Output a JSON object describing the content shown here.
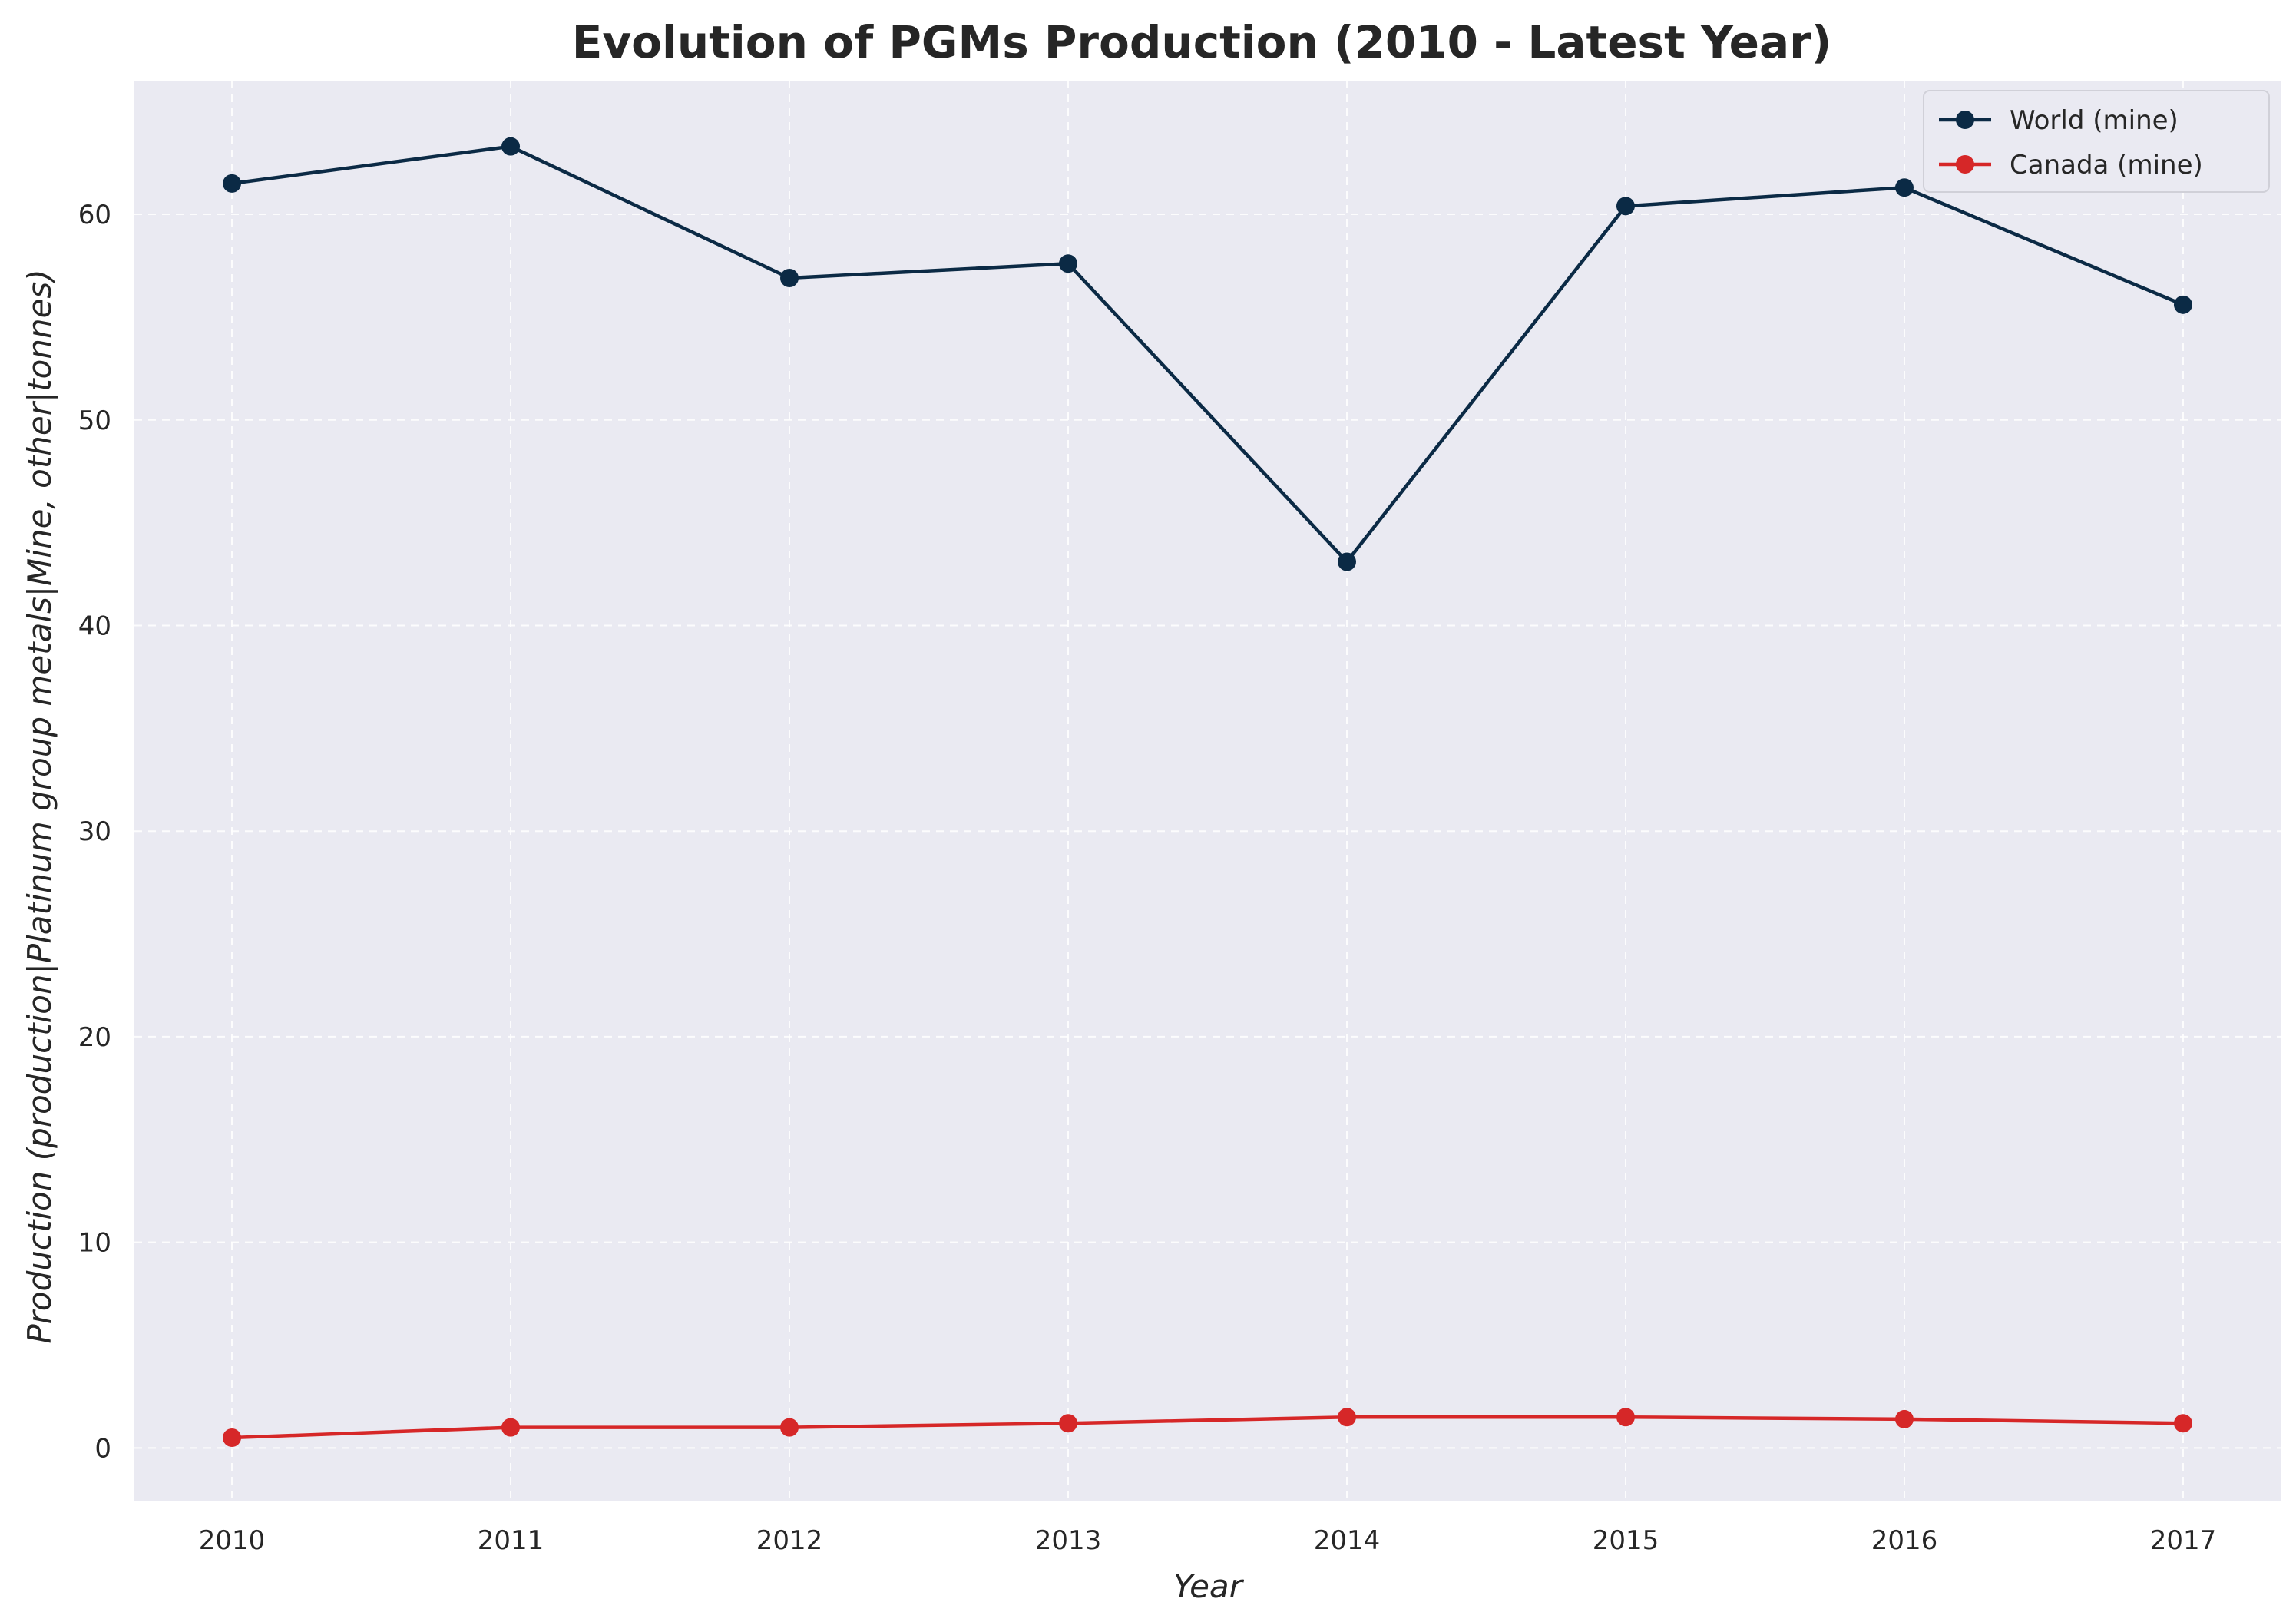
{
  "chart_data": {
    "type": "line",
    "title": "Evolution of PGMs Production (2010 - Latest Year)",
    "xlabel": "Year",
    "ylabel": "Production (production|Platinum group metals|Mine, other|tonnes)",
    "x": [
      2010,
      2011,
      2012,
      2013,
      2014,
      2015,
      2016,
      2017
    ],
    "xlim": [
      2009.65,
      2017.35
    ],
    "ylim": [
      -2.6,
      66.5
    ],
    "yticks": [
      0,
      10,
      20,
      30,
      40,
      50,
      60
    ],
    "grid": true,
    "legend_position": "top-right",
    "series": [
      {
        "name": "World (mine)",
        "color": "#0b2a45",
        "values": [
          61.5,
          63.3,
          56.9,
          57.6,
          43.1,
          60.4,
          61.3,
          55.6
        ]
      },
      {
        "name": "Canada (mine)",
        "color": "#d62728",
        "values": [
          0.5,
          1.0,
          1.0,
          1.2,
          1.5,
          1.5,
          1.4,
          1.2
        ]
      }
    ],
    "plot_background": "#eaeaf2"
  }
}
